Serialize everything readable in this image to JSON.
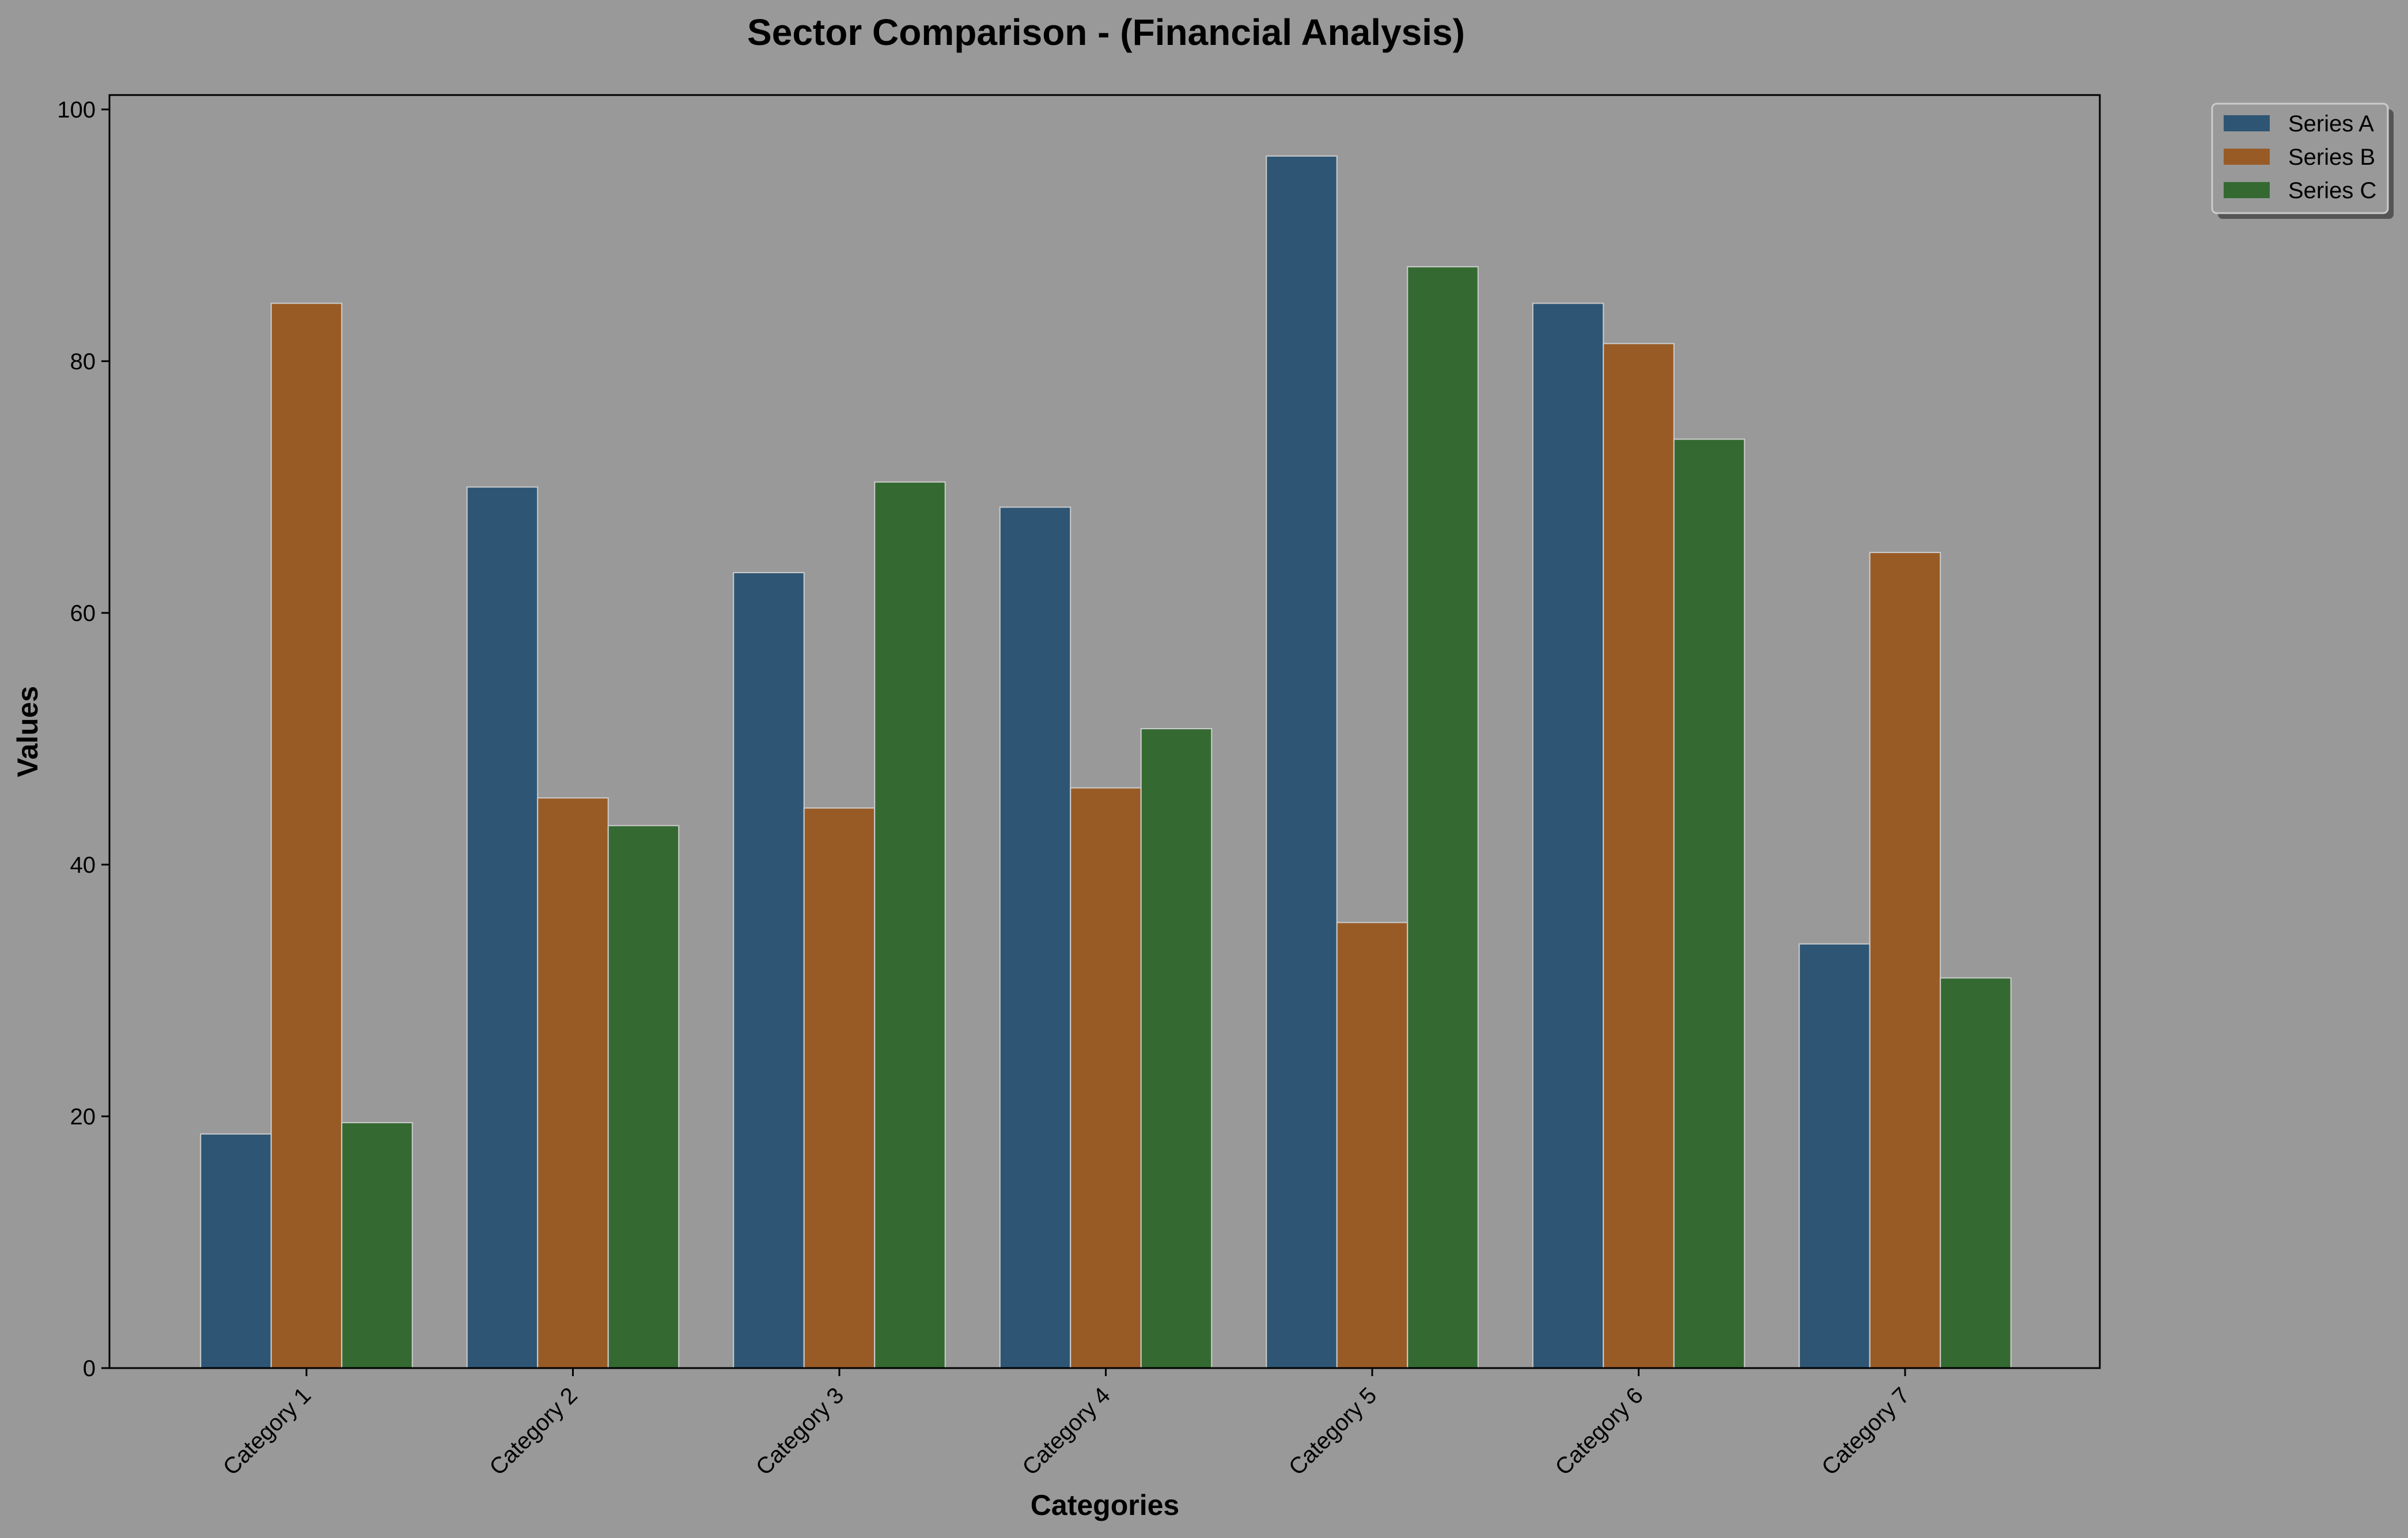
{
  "chart_data": {
    "type": "bar",
    "title": "Sector Comparison - (Financial Analysis)",
    "xlabel": "Categories",
    "ylabel": "Values",
    "ylim": [
      0,
      100
    ],
    "yticks": [
      0,
      20,
      40,
      60,
      80,
      100
    ],
    "grid": false,
    "legend_position": "top-right, outside plot",
    "categories": [
      "Category 1",
      "Category 2",
      "Category 3",
      "Category 4",
      "Category 5",
      "Category 6",
      "Category 7"
    ],
    "series": [
      {
        "name": "Series A",
        "color": "#2e5674",
        "values": [
          18.6,
          70.0,
          63.2,
          68.4,
          96.3,
          84.6,
          33.7
        ]
      },
      {
        "name": "Series B",
        "color": "#985b26",
        "values": [
          84.6,
          45.3,
          44.5,
          46.1,
          35.4,
          81.4,
          64.8
        ]
      },
      {
        "name": "Series C",
        "color": "#346a32",
        "values": [
          19.5,
          43.1,
          70.4,
          50.8,
          87.5,
          73.8,
          31.0
        ]
      }
    ],
    "colors": {
      "background": "#999999",
      "bar_edge": "#cccccc",
      "axes": "#000000"
    }
  }
}
